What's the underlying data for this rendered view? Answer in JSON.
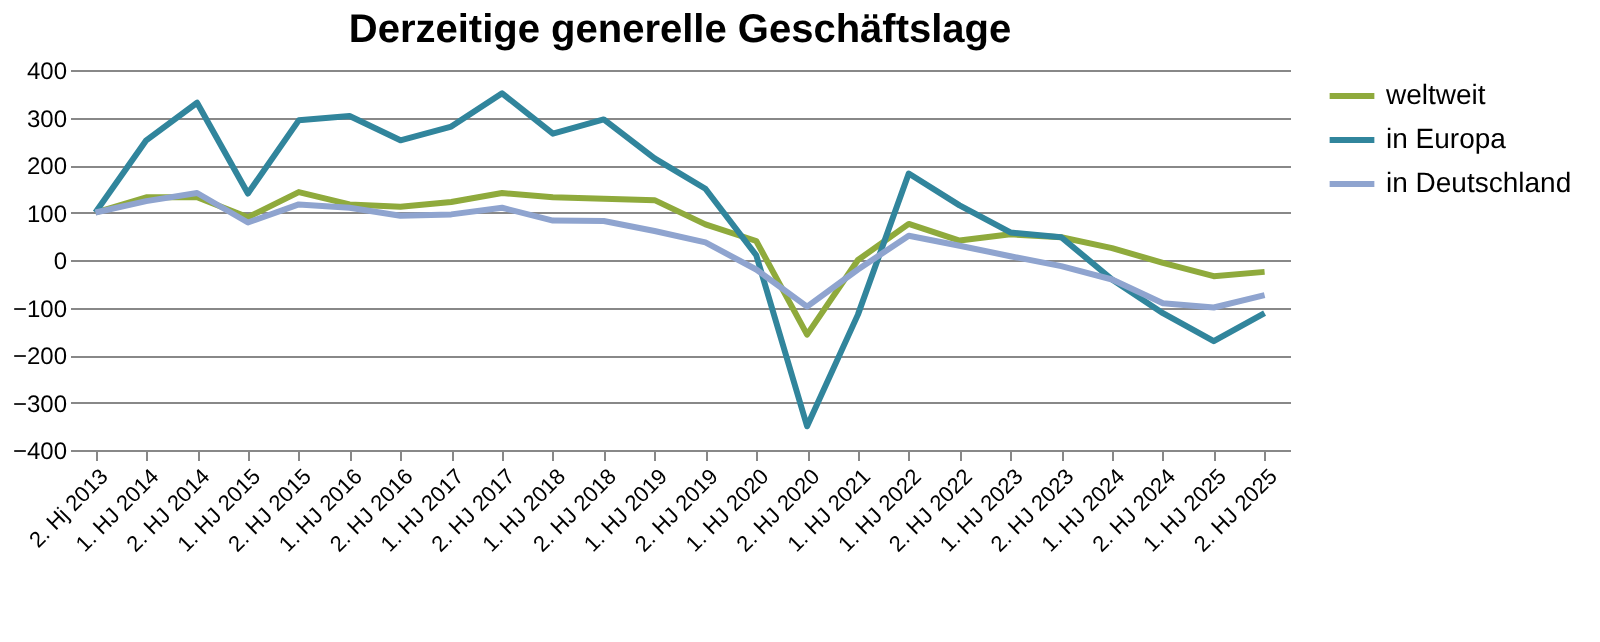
{
  "chart_data": {
    "type": "line",
    "title": "Derzeitige generelle Geschäftslage",
    "categories": [
      "2. Hj 2013",
      "1. HJ 2014",
      "2. HJ 2014",
      "1. HJ 2015",
      "2. HJ 2015",
      "1. HJ 2016",
      "2. HJ 2016",
      "1. HJ 2017",
      "2. HJ 2017",
      "1. HJ 2018",
      "2. HJ 2018",
      "1. HJ 2019",
      "2. HJ 2019",
      "1. HJ 2020",
      "2. HJ 2020",
      "1. HJ 2021",
      "1. HJ 2022",
      "2. HJ 2022",
      "1. HJ 2023",
      "2. HJ 2023",
      "1. HJ 2024",
      "2. HJ 2024",
      "1. HJ 2025",
      "2. HJ 2025"
    ],
    "series": [
      {
        "name": "weltweit",
        "color": "#8faa3c",
        "values": [
          100,
          132,
          132,
          90,
          143,
          117,
          112,
          122,
          141,
          132,
          129,
          126,
          75,
          40,
          -157,
          0,
          76,
          41,
          54,
          48,
          25,
          -6,
          -34,
          -25
        ]
      },
      {
        "name": "in Europa",
        "color": "#31859c",
        "values": [
          100,
          252,
          331,
          140,
          294,
          303,
          252,
          281,
          351,
          266,
          296,
          214,
          150,
          10,
          -350,
          -115,
          182,
          115,
          58,
          48,
          -41,
          -112,
          -171,
          -112
        ]
      },
      {
        "name": "in Deutschland",
        "color": "#8fa4cf",
        "values": [
          100,
          124,
          141,
          79,
          117,
          110,
          93,
          96,
          110,
          83,
          82,
          61,
          37,
          -20,
          -98,
          -20,
          51,
          30,
          8,
          -13,
          -41,
          -91,
          -100,
          -74
        ]
      }
    ],
    "ylim": [
      -400,
      400
    ],
    "yticks": [
      -400,
      -300,
      -200,
      -100,
      0,
      100,
      200,
      300,
      400
    ],
    "grid": "y",
    "legend": "right",
    "marker": "none",
    "line_style": "solid"
  }
}
